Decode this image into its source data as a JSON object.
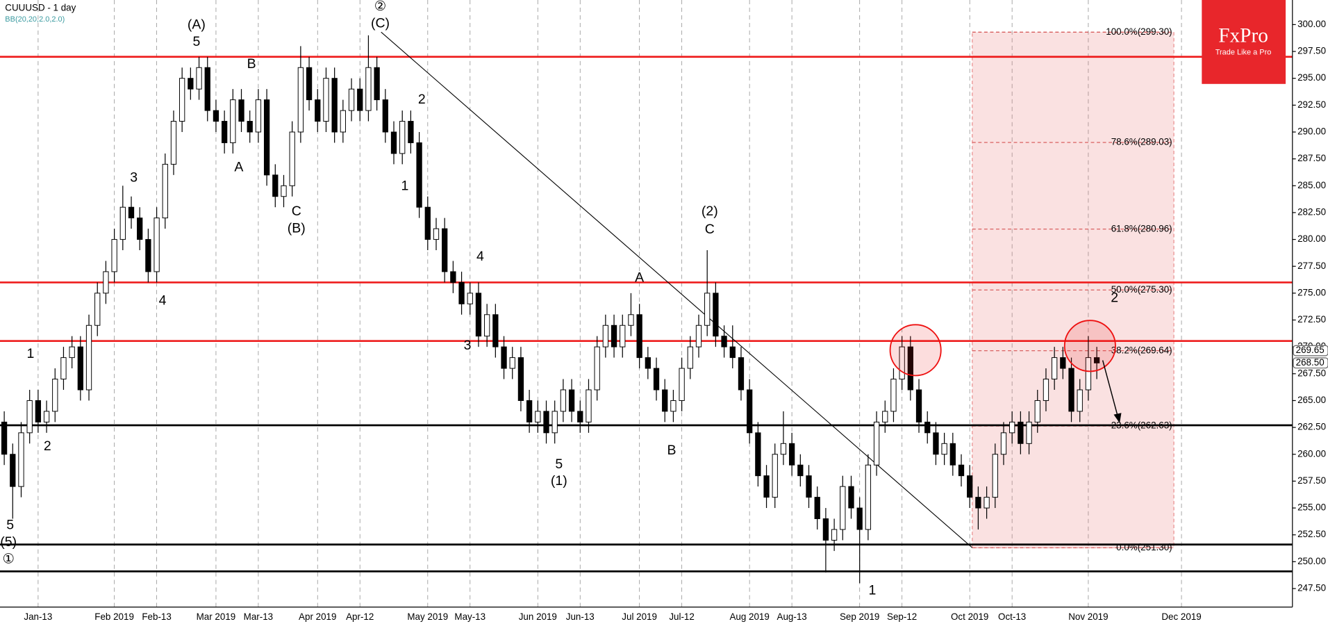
{
  "chart_data": {
    "type": "candlestick",
    "title": "CUUUSD - 1 day",
    "subtitle": "BB(20,20,2.0,2.0)",
    "logo": {
      "name": "FxPro",
      "tagline": "Trade Like a Pro"
    },
    "ohlc": [
      [
        263,
        264,
        259,
        260
      ],
      [
        260,
        261,
        254,
        257
      ],
      [
        257,
        263,
        256,
        262
      ],
      [
        262,
        266,
        261,
        265
      ],
      [
        265,
        266,
        262,
        263
      ],
      [
        263,
        265,
        262,
        264
      ],
      [
        264,
        268,
        263,
        267
      ],
      [
        267,
        270,
        266,
        269
      ],
      [
        269,
        271,
        268,
        270
      ],
      [
        270,
        271,
        265,
        266
      ],
      [
        266,
        273,
        265,
        272
      ],
      [
        272,
        276,
        271,
        275
      ],
      [
        275,
        278,
        274,
        277
      ],
      [
        277,
        281,
        276,
        280
      ],
      [
        280,
        285,
        279,
        283
      ],
      [
        283,
        284,
        281,
        282
      ],
      [
        282,
        283,
        279,
        280
      ],
      [
        280,
        281,
        276,
        277
      ],
      [
        277,
        283,
        276,
        282
      ],
      [
        282,
        288,
        281,
        287
      ],
      [
        287,
        292,
        286,
        291
      ],
      [
        291,
        296,
        290,
        295
      ],
      [
        295,
        296,
        293,
        294
      ],
      [
        294,
        297,
        293,
        296
      ],
      [
        296,
        297,
        291,
        292
      ],
      [
        292,
        293,
        290,
        291
      ],
      [
        291,
        292,
        288,
        289
      ],
      [
        289,
        294,
        288,
        293
      ],
      [
        293,
        294,
        290,
        291
      ],
      [
        291,
        292,
        289,
        290
      ],
      [
        290,
        294,
        289,
        293
      ],
      [
        293,
        294,
        285,
        286
      ],
      [
        286,
        287,
        283,
        284
      ],
      [
        284,
        286,
        283,
        285
      ],
      [
        285,
        291,
        284,
        290
      ],
      [
        290,
        298,
        289,
        296
      ],
      [
        296,
        297,
        292,
        293
      ],
      [
        293,
        294,
        290,
        291
      ],
      [
        291,
        296,
        290,
        295
      ],
      [
        295,
        296,
        289,
        290
      ],
      [
        290,
        293,
        289,
        292
      ],
      [
        292,
        295,
        291,
        294
      ],
      [
        294,
        295,
        291,
        292
      ],
      [
        292,
        299,
        291,
        296
      ],
      [
        296,
        297,
        292,
        293
      ],
      [
        293,
        294,
        289,
        290
      ],
      [
        290,
        291,
        287,
        288
      ],
      [
        288,
        292,
        287,
        291
      ],
      [
        291,
        292,
        288,
        289
      ],
      [
        289,
        290,
        282,
        283
      ],
      [
        283,
        284,
        279,
        280
      ],
      [
        280,
        282,
        279,
        281
      ],
      [
        281,
        282,
        276,
        277
      ],
      [
        277,
        278,
        275,
        276
      ],
      [
        276,
        277,
        273,
        274
      ],
      [
        274,
        276,
        273,
        275
      ],
      [
        275,
        276,
        270,
        271
      ],
      [
        271,
        274,
        270,
        273
      ],
      [
        273,
        274,
        269,
        270
      ],
      [
        270,
        271,
        267,
        268
      ],
      [
        268,
        270,
        267,
        269
      ],
      [
        269,
        270,
        264,
        265
      ],
      [
        265,
        266,
        262,
        263
      ],
      [
        263,
        265,
        262,
        264
      ],
      [
        264,
        265,
        261,
        262
      ],
      [
        262,
        265,
        261,
        264
      ],
      [
        264,
        267,
        263,
        266
      ],
      [
        266,
        267,
        263,
        264
      ],
      [
        264,
        265,
        262,
        263
      ],
      [
        263,
        267,
        262,
        266
      ],
      [
        266,
        271,
        265,
        270
      ],
      [
        270,
        273,
        269,
        272
      ],
      [
        272,
        273,
        269,
        270
      ],
      [
        270,
        273,
        269,
        272
      ],
      [
        272,
        275,
        271,
        273
      ],
      [
        273,
        274,
        268,
        269
      ],
      [
        269,
        270,
        267,
        268
      ],
      [
        268,
        269,
        265,
        266
      ],
      [
        266,
        267,
        263,
        264
      ],
      [
        264,
        266,
        263,
        265
      ],
      [
        265,
        269,
        264,
        268
      ],
      [
        268,
        271,
        267,
        270
      ],
      [
        270,
        273,
        269,
        272
      ],
      [
        272,
        279,
        271,
        275
      ],
      [
        275,
        276,
        270,
        271
      ],
      [
        271,
        272,
        269,
        270
      ],
      [
        270,
        272,
        268,
        269
      ],
      [
        269,
        270,
        265,
        266
      ],
      [
        266,
        267,
        261,
        262
      ],
      [
        262,
        263,
        257,
        258
      ],
      [
        258,
        259,
        255,
        256
      ],
      [
        256,
        261,
        255,
        260
      ],
      [
        260,
        264,
        259,
        261
      ],
      [
        261,
        262,
        258,
        259
      ],
      [
        259,
        260,
        257,
        258
      ],
      [
        258,
        259,
        255,
        256
      ],
      [
        256,
        257,
        253,
        254
      ],
      [
        254,
        255,
        249,
        252
      ],
      [
        252,
        254,
        251,
        253
      ],
      [
        253,
        258,
        252,
        257
      ],
      [
        257,
        258,
        254,
        255
      ],
      [
        255,
        256,
        248,
        253
      ],
      [
        253,
        260,
        252,
        259
      ],
      [
        259,
        264,
        258,
        263
      ],
      [
        263,
        265,
        262,
        264
      ],
      [
        264,
        268,
        263,
        267
      ],
      [
        267,
        271,
        266,
        270
      ],
      [
        270,
        271,
        265,
        266
      ],
      [
        266,
        267,
        262,
        263
      ],
      [
        263,
        264,
        261,
        262
      ],
      [
        262,
        263,
        259,
        260
      ],
      [
        260,
        262,
        259,
        261
      ],
      [
        261,
        262,
        258,
        259
      ],
      [
        259,
        260,
        257,
        258
      ],
      [
        258,
        259,
        255,
        256
      ],
      [
        256,
        257,
        253,
        255
      ],
      [
        255,
        257,
        254,
        256
      ],
      [
        256,
        261,
        255,
        260
      ],
      [
        260,
        263,
        259,
        262
      ],
      [
        262,
        264,
        261,
        263
      ],
      [
        263,
        264,
        260,
        261
      ],
      [
        261,
        264,
        260,
        263
      ],
      [
        263,
        266,
        262,
        265
      ],
      [
        265,
        268,
        264,
        267
      ],
      [
        267,
        270,
        266,
        269
      ],
      [
        269,
        270,
        267,
        268
      ],
      [
        268,
        269,
        263,
        264
      ],
      [
        264,
        267,
        263,
        266
      ],
      [
        266,
        271,
        265,
        269
      ],
      [
        269,
        270,
        267,
        268.5
      ]
    ],
    "xlim": [
      -0.5,
      152.1
    ],
    "ylim": [
      244.2,
      302.29
    ],
    "xticks": [
      {
        "value": 4,
        "label": "Jan-13"
      },
      {
        "value": 13,
        "label": "Feb 2019"
      },
      {
        "value": 18,
        "label": "Feb-13"
      },
      {
        "value": 25,
        "label": "Mar 2019"
      },
      {
        "value": 30,
        "label": "Mar-13"
      },
      {
        "value": 37,
        "label": "Apr 2019"
      },
      {
        "value": 42,
        "label": "Apr-12"
      },
      {
        "value": 50,
        "label": "May 2019"
      },
      {
        "value": 55,
        "label": "May-13"
      },
      {
        "value": 63,
        "label": "Jun 2019"
      },
      {
        "value": 68,
        "label": "Jun-13"
      },
      {
        "value": 75,
        "label": "Jul 2019"
      },
      {
        "value": 80,
        "label": "Jul-12"
      },
      {
        "value": 88,
        "label": "Aug 2019"
      },
      {
        "value": 93,
        "label": "Aug-13"
      },
      {
        "value": 101,
        "label": "Sep 2019"
      },
      {
        "value": 106,
        "label": "Sep-12"
      },
      {
        "value": 114,
        "label": "Oct 2019"
      },
      {
        "value": 119,
        "label": "Oct-13"
      },
      {
        "value": 128,
        "label": "Nov 2019"
      },
      {
        "value": 139,
        "label": "Dec 2019"
      }
    ],
    "yticks": [
      {
        "value": 247.5,
        "label": "247.50"
      },
      {
        "value": 250,
        "label": "250.00"
      },
      {
        "value": 252.5,
        "label": "252.50"
      },
      {
        "value": 255,
        "label": "255.00"
      },
      {
        "value": 257.5,
        "label": "257.50"
      },
      {
        "value": 260,
        "label": "260.00"
      },
      {
        "value": 262.5,
        "label": "262.50"
      },
      {
        "value": 265,
        "label": "265.00"
      },
      {
        "value": 267.5,
        "label": "267.50"
      },
      {
        "value": 270,
        "label": "270.00"
      },
      {
        "value": 272.5,
        "label": "272.50"
      },
      {
        "value": 275,
        "label": "275.00"
      },
      {
        "value": 277.5,
        "label": "277.50"
      },
      {
        "value": 280,
        "label": "280.00"
      },
      {
        "value": 282.5,
        "label": "282.50"
      },
      {
        "value": 285,
        "label": "285.00"
      },
      {
        "value": 287.5,
        "label": "287.50"
      },
      {
        "value": 290,
        "label": "290.00"
      },
      {
        "value": 292.5,
        "label": "292.50"
      },
      {
        "value": 295,
        "label": "295.00"
      },
      {
        "value": 297.5,
        "label": "297.50"
      },
      {
        "value": 300,
        "label": "300.00"
      }
    ],
    "levels": [
      {
        "value": 297,
        "color": "#ee1c1c"
      },
      {
        "value": 276,
        "color": "#ee1c1c"
      },
      {
        "value": 270.55,
        "color": "#ee1c1c"
      },
      {
        "value": 262.7,
        "color": "#000000"
      },
      {
        "value": 251.6,
        "color": "#000000"
      },
      {
        "value": 249.1,
        "color": "#000000"
      }
    ],
    "trendline": {
      "x": [
        44.5,
        114.3
      ],
      "y": [
        299.3,
        251.3
      ]
    },
    "fib": {
      "x": [
        114.3,
        138.1
      ],
      "levels": [
        {
          "value": 299.3,
          "label": "100.0%(299.30)"
        },
        {
          "value": 289.03,
          "label": "78.6%(289.03)"
        },
        {
          "value": 280.96,
          "label": "61.8%(280.96)"
        },
        {
          "value": 275.3,
          "label": "50.0%(275.30)"
        },
        {
          "value": 269.64,
          "label": "38.2%(269.64)"
        },
        {
          "value": 262.63,
          "label": "23.6%(262.63)"
        },
        {
          "value": 251.3,
          "label": "0.0%(251.30)"
        }
      ]
    },
    "price_tags": [
      269.65,
      {
        "value": 268.5,
        "label": "268.50"
      }
    ],
    "wave_labels": [
      "(A)",
      "5",
      "B",
      "A",
      "3",
      "4",
      "1",
      "2",
      "5",
      "(5)",
      "①",
      "②",
      "(C)",
      "2",
      "1",
      "C",
      "(B)",
      "4",
      "3",
      "5",
      "(1)",
      "A",
      "B",
      "(2)",
      "C",
      "1",
      "2"
    ]
  }
}
